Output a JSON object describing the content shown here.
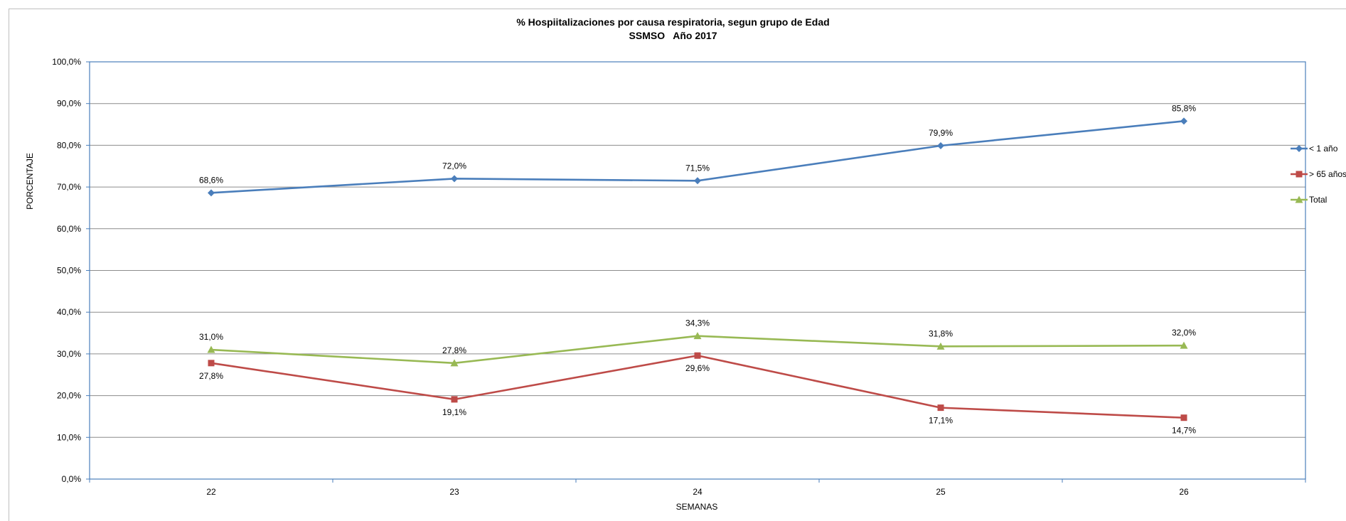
{
  "chart_data": {
    "type": "line",
    "title": "% Hospiitalizaciones por causa respiratoria, segun grupo de Edad",
    "subtitle": "SSMSO   Año 2017",
    "xlabel": "SEMANAS",
    "ylabel": "PORCENTAJE",
    "categories": [
      "22",
      "23",
      "24",
      "25",
      "26"
    ],
    "ylim": [
      0,
      100
    ],
    "yticks": [
      "0,0%",
      "10,0%",
      "20,0%",
      "30,0%",
      "40,0%",
      "50,0%",
      "60,0%",
      "70,0%",
      "80,0%",
      "90,0%",
      "100,0%"
    ],
    "grid": true,
    "legend_position": "right",
    "series": [
      {
        "name": "< 1 año",
        "color": "#4a7ebb",
        "marker": "diamond",
        "values": [
          68.6,
          72.0,
          71.5,
          79.9,
          85.8
        ],
        "labels": [
          "68,6%",
          "72,0%",
          "71,5%",
          "79,9%",
          "85,8%"
        ],
        "label_side": "above"
      },
      {
        "name": "> 65 años",
        "color": "#be4b48",
        "marker": "square",
        "values": [
          27.8,
          19.1,
          29.6,
          17.1,
          14.7
        ],
        "labels": [
          "27,8%",
          "19,1%",
          "29,6%",
          "17,1%",
          "14,7%"
        ],
        "label_side": "below"
      },
      {
        "name": "Total",
        "color": "#98b954",
        "marker": "triangle",
        "values": [
          31.0,
          27.8,
          34.3,
          31.8,
          32.0
        ],
        "labels": [
          "31,0%",
          "27,8%",
          "34,3%",
          "31,8%",
          "32,0%"
        ],
        "label_side": "above"
      }
    ]
  }
}
